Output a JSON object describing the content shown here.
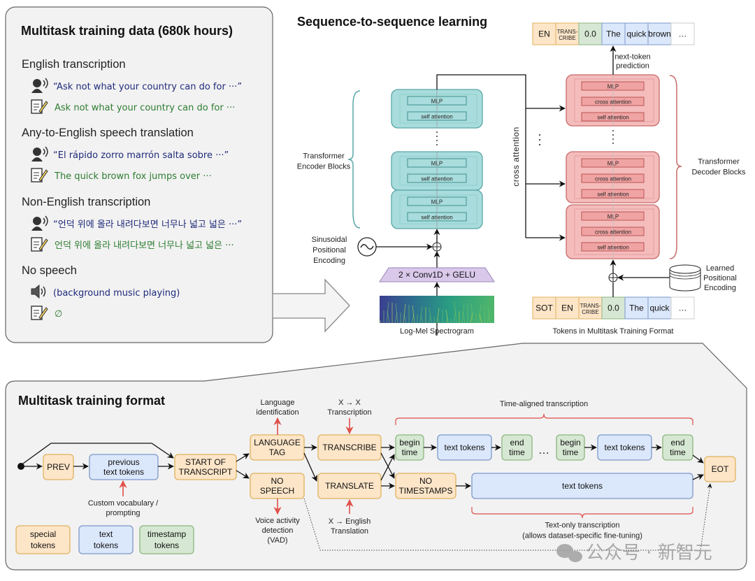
{
  "data_panel": {
    "title": "Multitask training data (680k hours)",
    "sections": [
      {
        "heading": "English transcription",
        "audio": "“Ask not what your country can do for ···”",
        "text": "Ask not what your country can do for ···"
      },
      {
        "heading": "Any-to-English speech translation",
        "audio": "“El rápido zorro marrón salta sobre ···”",
        "text": "The quick brown fox jumps over ···"
      },
      {
        "heading": "Non-English transcription",
        "audio": "“언덕 위에 올라 내려다보면 너무나 넓고 넓은 ···”",
        "text": "언덕 위에 올라 내려다보면 너무나 넓고 넓은 ···"
      },
      {
        "heading": "No speech",
        "audio": "(background music playing)",
        "text": "∅"
      }
    ],
    "icons": [
      "speaking-person-icon",
      "note-pencil-icon",
      "speaker-sound-icon"
    ]
  },
  "seq2seq": {
    "title": "Sequence-to-sequence learning",
    "encoder": {
      "mlp": "MLP",
      "self_attention": "self attention",
      "label": [
        "Transformer",
        "Encoder Blocks"
      ]
    },
    "decoder": {
      "mlp": "MLP",
      "cross_attention": "cross attention",
      "self_attention": "self attention",
      "label": [
        "Transformer",
        "Decoder Blocks"
      ]
    },
    "cross_attention_label": "cross attention",
    "sinusoidal_label": [
      "Sinusoidal",
      "Positional",
      "Encoding"
    ],
    "conv_label": "2 × Conv1D + GELU",
    "spectrogram_label": "Log-Mel Spectrogram",
    "learned_label": [
      "Learned",
      "Positional",
      "Encoding"
    ],
    "next_token_label": [
      "next-token",
      "prediction"
    ],
    "input_tokens_label": "Tokens in Multitask Training Format",
    "output_tokens": [
      {
        "lines": [
          "EN"
        ],
        "type": "special"
      },
      {
        "lines": [
          "TRANS-",
          "CRIBE"
        ],
        "type": "special"
      },
      {
        "lines": [
          "0.0"
        ],
        "type": "timestamp"
      },
      {
        "lines": [
          "The"
        ],
        "type": "text"
      },
      {
        "lines": [
          "quick"
        ],
        "type": "text"
      },
      {
        "lines": [
          "brown"
        ],
        "type": "text"
      },
      {
        "lines": [
          "…"
        ],
        "type": "plain"
      }
    ],
    "input_tokens": [
      {
        "lines": [
          "SOT"
        ],
        "type": "special"
      },
      {
        "lines": [
          "EN"
        ],
        "type": "special"
      },
      {
        "lines": [
          "TRANS-",
          "CRIBE"
        ],
        "type": "special"
      },
      {
        "lines": [
          "0.0"
        ],
        "type": "timestamp"
      },
      {
        "lines": [
          "The"
        ],
        "type": "text"
      },
      {
        "lines": [
          "quick"
        ],
        "type": "text"
      },
      {
        "lines": [
          "…"
        ],
        "type": "plain"
      }
    ]
  },
  "format": {
    "title": "Multitask training format",
    "prev": [
      "PREV"
    ],
    "previous_text_tokens": [
      "previous",
      "text tokens"
    ],
    "start_of_transcript": [
      "START OF",
      "TRANSCRIPT"
    ],
    "language_tag": [
      "LANGUAGE",
      "TAG"
    ],
    "no_speech": [
      "NO",
      "SPEECH"
    ],
    "transcribe": [
      "TRANSCRIBE"
    ],
    "translate": [
      "TRANSLATE"
    ],
    "begin_time": [
      "begin",
      "time"
    ],
    "end_time": [
      "end",
      "time"
    ],
    "text_tokens": [
      "text tokens"
    ],
    "no_timestamps": [
      "NO",
      "TIMESTAMPS"
    ],
    "eot": [
      "EOT"
    ],
    "ellipsis": "…",
    "custom_vocab_note": [
      "Custom vocabulary /",
      "prompting"
    ],
    "language_id_note": [
      "Language",
      "identification"
    ],
    "x_to_x_note": [
      "X → X",
      "Transcription"
    ],
    "vad_note": [
      "Voice activity",
      "detection",
      "(VAD)"
    ],
    "x_to_en_note": [
      "X → English",
      "Translation"
    ],
    "time_aligned_note": "Time-aligned transcription",
    "text_only_note": [
      "Text-only transcription",
      "(allows dataset-specific fine-tuning)"
    ],
    "legend": [
      {
        "lines": [
          "special",
          "tokens"
        ],
        "type": "special"
      },
      {
        "lines": [
          "text",
          "tokens"
        ],
        "type": "text"
      },
      {
        "lines": [
          "timestamp",
          "tokens"
        ],
        "type": "timestamp"
      }
    ]
  },
  "colors": {
    "special_fill": "#fde5c8",
    "special_stroke": "#e0b35e",
    "text_fill": "#dbe7fb",
    "text_stroke": "#7d98c8",
    "timestamp_fill": "#d6e8d3",
    "timestamp_stroke": "#8cb57f",
    "encoder_fill": "#a9dcdc",
    "encoder_stroke": "#5aa6a6",
    "decoder_fill": "#f5bcbc",
    "decoder_stroke": "#c76a6a",
    "annotation_red": "#e0504a",
    "audio_text_blue": "#1f2a7a",
    "transcript_green": "#2e7d32"
  },
  "watermark": "公众号 · 新智元"
}
